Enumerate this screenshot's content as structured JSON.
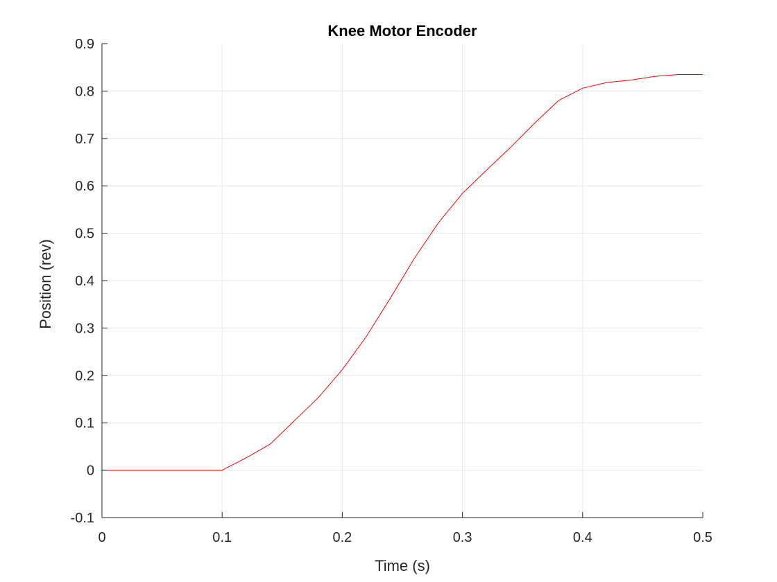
{
  "chart_data": {
    "type": "line",
    "title": "Knee Motor Encoder",
    "xlabel": "Time (s)",
    "ylabel": "Position (rev)",
    "xlim": [
      0,
      0.5
    ],
    "ylim": [
      -0.1,
      0.9
    ],
    "xticks": [
      0,
      0.1,
      0.2,
      0.3,
      0.4,
      0.5
    ],
    "xtick_labels": [
      "0",
      "0.1",
      "0.2",
      "0.3",
      "0.4",
      "0.5"
    ],
    "yticks": [
      -0.1,
      0,
      0.1,
      0.2,
      0.3,
      0.4,
      0.5,
      0.6,
      0.7,
      0.8,
      0.9
    ],
    "ytick_labels": [
      "-0.1",
      "0",
      "0.1",
      "0.2",
      "0.3",
      "0.4",
      "0.5",
      "0.6",
      "0.7",
      "0.8",
      "0.9"
    ],
    "grid": true,
    "series": [
      {
        "color": "#ff0000",
        "x": [
          0,
          0.02,
          0.04,
          0.06,
          0.08,
          0.1,
          0.12,
          0.14,
          0.16,
          0.18,
          0.2,
          0.22,
          0.24,
          0.26,
          0.28,
          0.3,
          0.32,
          0.34,
          0.36,
          0.38,
          0.4,
          0.42,
          0.44,
          0.46,
          0.48,
          0.5
        ],
        "y": [
          0,
          0,
          0,
          0,
          0,
          0,
          0.026,
          0.055,
          0.104,
          0.153,
          0.212,
          0.282,
          0.363,
          0.447,
          0.522,
          0.584,
          0.633,
          0.681,
          0.732,
          0.78,
          0.806,
          0.818,
          0.823,
          0.831,
          0.835,
          0.835
        ]
      }
    ]
  }
}
